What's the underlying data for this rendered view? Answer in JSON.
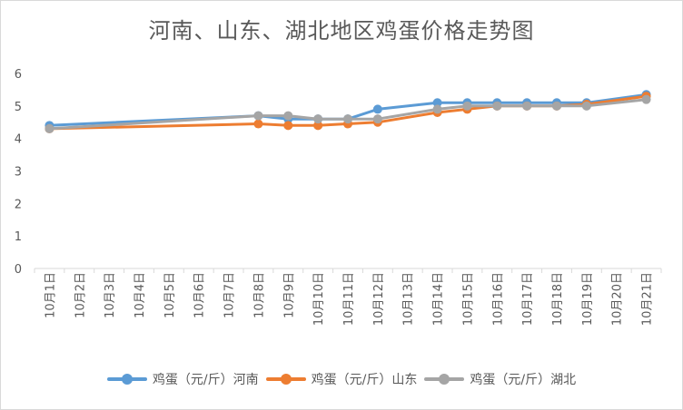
{
  "title": "河南、山东、湖北地区鸡蛋价格走势图",
  "chart_data": {
    "type": "line",
    "title": "河南、山东、湖北地区鸡蛋价格走势图",
    "categories": [
      "10月1日",
      "10月2日",
      "10月3日",
      "10月4日",
      "10月5日",
      "10月6日",
      "10月7日",
      "10月8日",
      "10月9日",
      "10月10日",
      "10月11日",
      "10月12日",
      "10月13日",
      "10月14日",
      "10月15日",
      "10月16日",
      "10月17日",
      "10月18日",
      "10月19日",
      "10月20日",
      "10月21日"
    ],
    "ylim": [
      0,
      6
    ],
    "yticks": [
      0,
      1,
      2,
      3,
      4,
      5,
      6
    ],
    "grid": false,
    "legend_position": "bottom",
    "series": [
      {
        "name": "鸡蛋（元/斤）河南",
        "color": "#5b9bd5",
        "values": [
          4.4,
          null,
          null,
          null,
          null,
          null,
          null,
          4.7,
          4.6,
          4.6,
          4.6,
          4.9,
          null,
          5.1,
          5.1,
          5.1,
          5.1,
          5.1,
          5.1,
          null,
          5.35
        ]
      },
      {
        "name": "鸡蛋（元/斤）山东",
        "color": "#ed7d31",
        "values": [
          4.3,
          null,
          null,
          null,
          null,
          null,
          null,
          4.45,
          4.4,
          4.4,
          4.45,
          4.5,
          null,
          4.8,
          4.9,
          5.0,
          5.0,
          5.0,
          5.05,
          null,
          5.3
        ]
      },
      {
        "name": "鸡蛋（元/斤）湖北",
        "color": "#a5a5a5",
        "values": [
          4.3,
          null,
          null,
          null,
          null,
          null,
          null,
          4.7,
          4.7,
          4.6,
          4.6,
          4.6,
          null,
          4.9,
          5.0,
          5.0,
          5.0,
          5.0,
          5.0,
          null,
          5.2
        ]
      }
    ]
  }
}
